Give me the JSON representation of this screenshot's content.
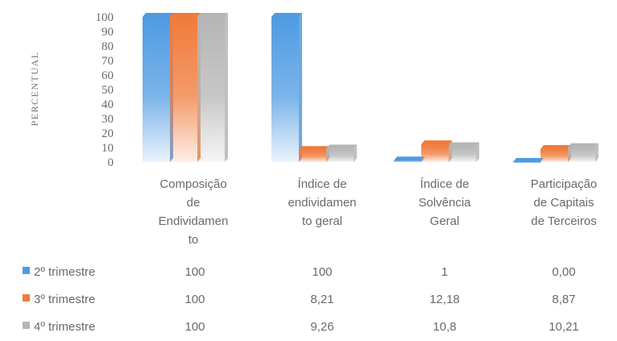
{
  "chart_data": {
    "type": "bar",
    "ylabel": "PERCENTUAL",
    "ylim": [
      0,
      100
    ],
    "yticks": [
      "100",
      "90",
      "80",
      "70",
      "60",
      "50",
      "40",
      "30",
      "20",
      "10",
      "0"
    ],
    "categories": [
      [
        "Composição",
        "de",
        "Endividamen",
        "to"
      ],
      [
        "Índice de",
        "endividamen",
        "to geral"
      ],
      [
        "Índice de",
        "Solvência",
        "Geral"
      ],
      [
        "Participação",
        "de Capitais",
        "de Terceiros"
      ]
    ],
    "series": [
      {
        "name": "2º trimestre",
        "color": "#4f9be2",
        "values": [
          100,
          100,
          1,
          0.0
        ],
        "labels": [
          "100",
          "100",
          "1",
          "0,00"
        ]
      },
      {
        "name": "3º trimestre",
        "color": "#f07a3a",
        "values": [
          100,
          8.21,
          12.18,
          8.87
        ],
        "labels": [
          "100",
          "8,21",
          "12,18",
          "8,87"
        ]
      },
      {
        "name": "4º trimestre",
        "color": "#b5b5b5",
        "values": [
          100,
          9.26,
          10.8,
          10.21
        ],
        "labels": [
          "100",
          "9,26",
          "10,8",
          "10,21"
        ]
      }
    ],
    "grid": false,
    "legend": "data-table"
  }
}
